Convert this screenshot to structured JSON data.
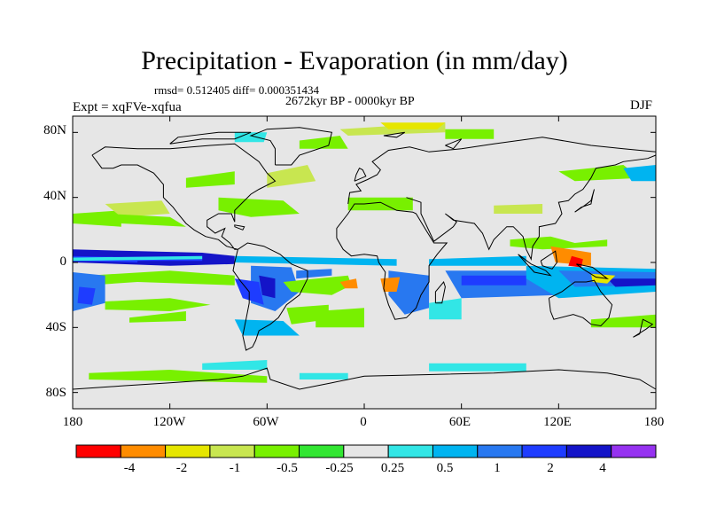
{
  "figure": {
    "title": "Precipitation - Evaporation (in mm/day)",
    "stats": "rmsd= 0.512405 diff= 0.000351434",
    "period": "2672kyr BP - 0000kyr BP",
    "experiment": "Expt = xqFVe-xqfua",
    "season": "DJF"
  },
  "map": {
    "projection": "cylindrical-equidistant",
    "lon_range": [
      -180,
      180
    ],
    "lat_range": [
      -90,
      90
    ],
    "missing_fill_color": "#e6e6e6",
    "y_ticks": [
      "80N",
      "40N",
      "0",
      "40S",
      "80S"
    ],
    "x_ticks": [
      "180",
      "120W",
      "60W",
      "0",
      "60E",
      "120E",
      "180"
    ]
  },
  "colorbar": {
    "colors": [
      "#ff0000",
      "#ff8c00",
      "#e6e600",
      "#c8e650",
      "#78f000",
      "#32e632",
      "#e6e6e6",
      "#32e6e6",
      "#00b4f0",
      "#2878f0",
      "#1e3cff",
      "#1414c8",
      "#9632f0"
    ],
    "labels": [
      "-4",
      "-2",
      "-1",
      "-0.5",
      "-0.25",
      "0.25",
      "0.5",
      "1",
      "2",
      "4"
    ]
  }
}
